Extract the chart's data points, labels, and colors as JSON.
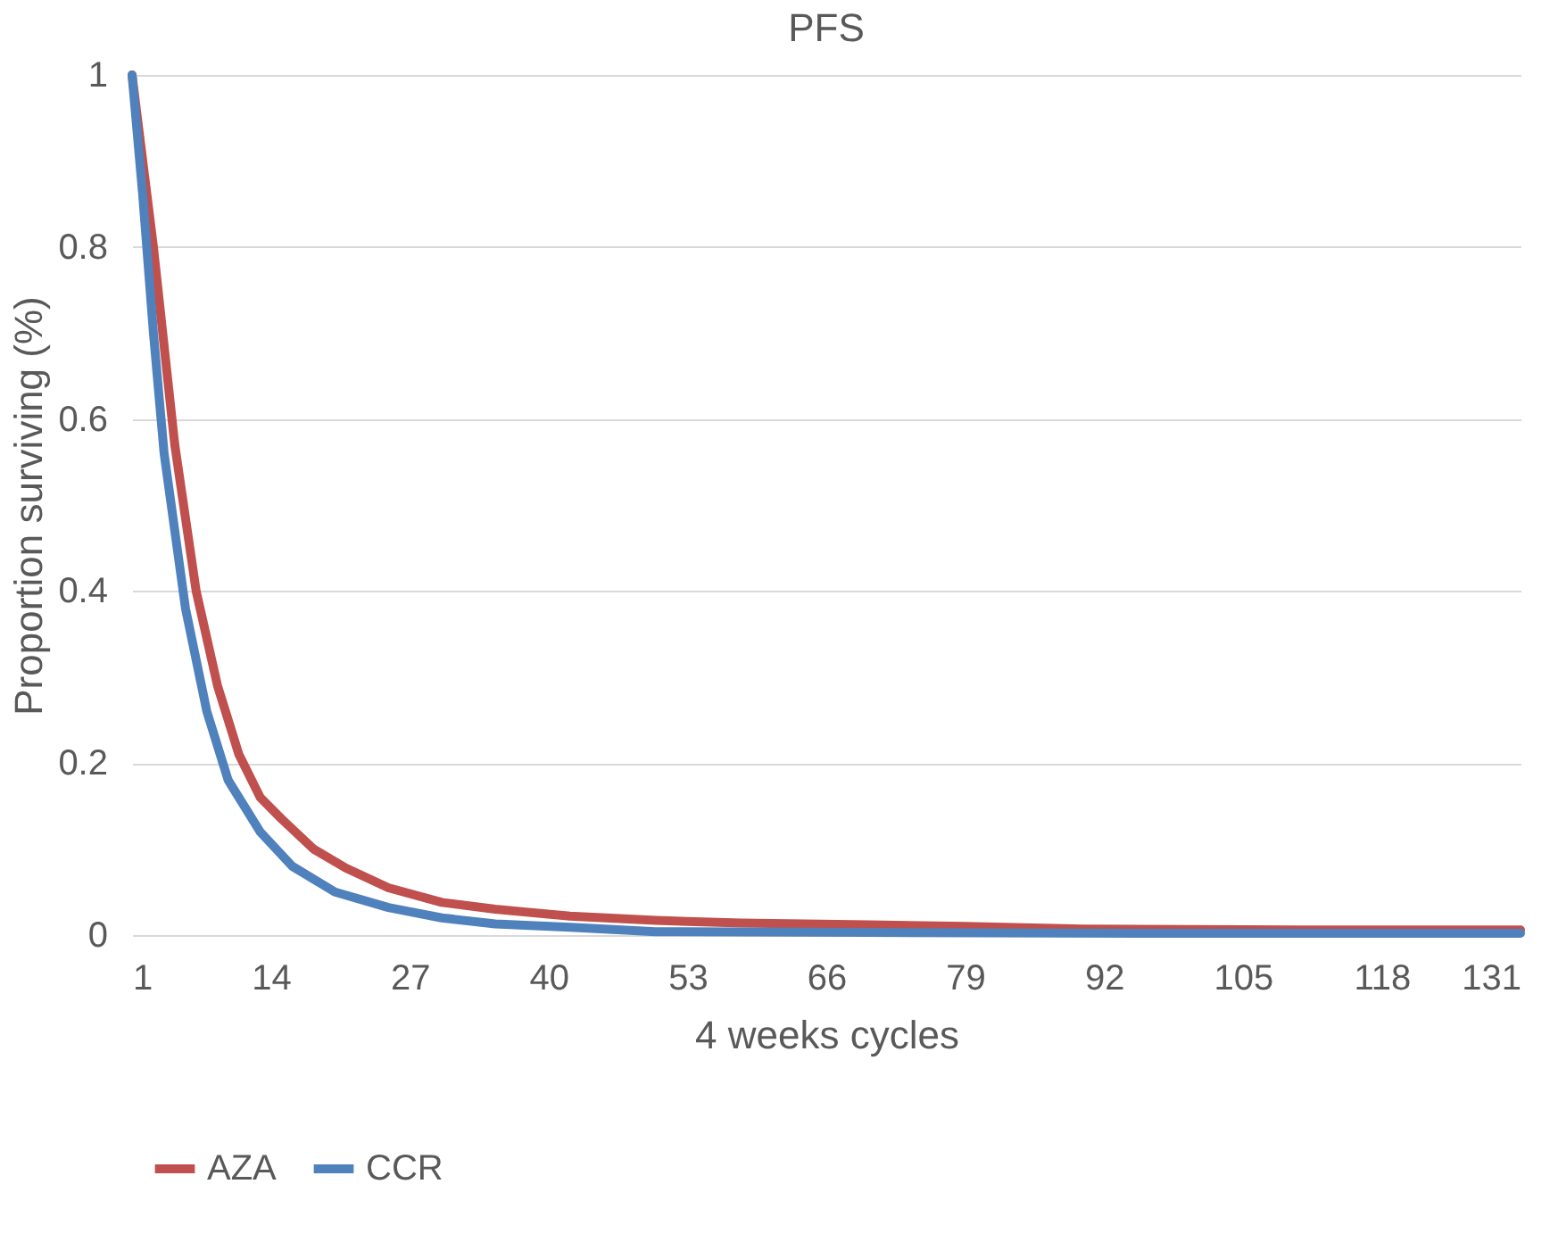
{
  "chart_data": {
    "type": "line",
    "title": "PFS",
    "xlabel": "4 weeks cycles",
    "ylabel": "Proportion surviving (%)",
    "xlim": [
      1,
      131
    ],
    "xticks": [
      1,
      14,
      27,
      40,
      53,
      66,
      79,
      92,
      105,
      118,
      131
    ],
    "ylim": [
      0,
      1
    ],
    "yticks": [
      0,
      0.2,
      0.4,
      0.6,
      0.8,
      1
    ],
    "grid": "y",
    "legend": "bottom",
    "marker": "none",
    "line_style": "solid",
    "series": [
      {
        "name": "AZA",
        "color": "#c0504d",
        "x": [
          1,
          3,
          5,
          7,
          9,
          11,
          13,
          15,
          18,
          21,
          25,
          30,
          35,
          42,
          50,
          58,
          70,
          79,
          90,
          110,
          131
        ],
        "values": [
          1,
          0.8,
          0.57,
          0.4,
          0.29,
          0.21,
          0.16,
          0.135,
          0.1,
          0.078,
          0.055,
          0.038,
          0.03,
          0.022,
          0.017,
          0.014,
          0.012,
          0.01,
          0.007,
          0.006,
          0.006
        ]
      },
      {
        "name": "CCR",
        "color": "#4f81bd",
        "x": [
          1,
          2,
          3,
          4,
          6,
          8,
          10,
          13,
          16,
          20,
          25,
          30,
          35,
          42,
          50,
          70,
          100,
          131
        ],
        "values": [
          1,
          0.86,
          0.7,
          0.56,
          0.38,
          0.26,
          0.18,
          0.12,
          0.08,
          0.05,
          0.032,
          0.02,
          0.013,
          0.009,
          0.004,
          0.003,
          0.002,
          0.002
        ]
      }
    ]
  }
}
